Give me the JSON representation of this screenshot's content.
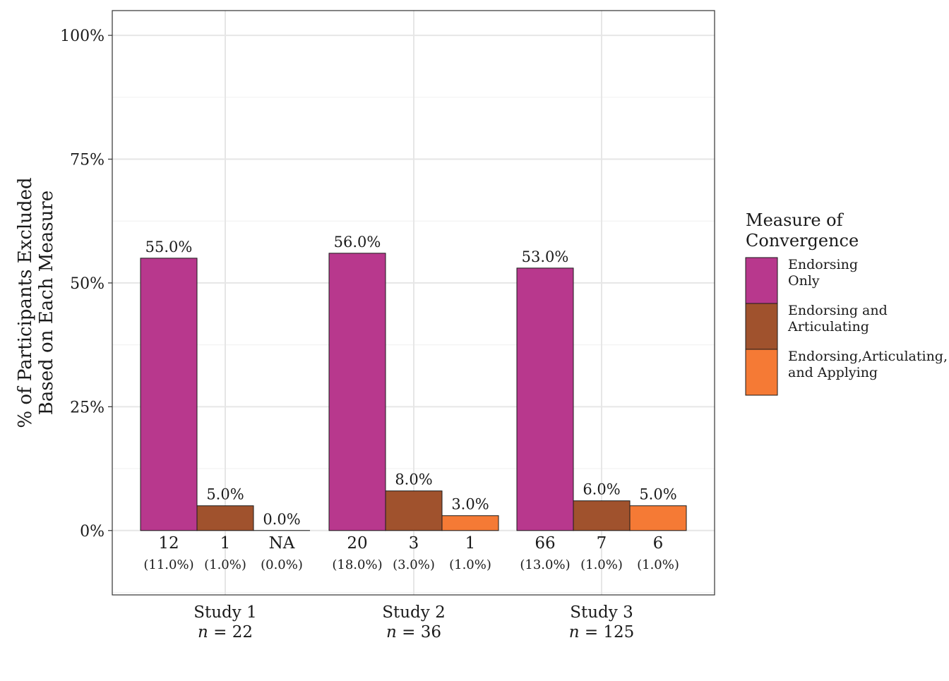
{
  "chart_data": {
    "type": "bar",
    "ylabel": [
      "% of Participants Excluded",
      "Based on Each Measure"
    ],
    "ylim": [
      -0.13,
      1.05
    ],
    "yticks": [
      0,
      0.25,
      0.5,
      0.75,
      1.0
    ],
    "ytick_labels": [
      "0%",
      "25%",
      "50%",
      "75%",
      "100%"
    ],
    "grid": true,
    "legend": {
      "title": [
        "Measure of",
        "Convergence"
      ],
      "placement": "right",
      "entries": [
        {
          "label": [
            "Endorsing",
            "Only"
          ],
          "color": "#B8388D"
        },
        {
          "label": [
            "Endorsing and",
            "Articulating"
          ],
          "color": "#A0522D"
        },
        {
          "label": [
            "Endorsing,Articulating,",
            "and Applying"
          ],
          "color": "#F57A35"
        }
      ]
    },
    "groups": [
      {
        "name": "Study 1",
        "n_prefix": "n",
        "n_text": " = 22",
        "bars": [
          {
            "value": 0.55,
            "label": "55.0%",
            "count": "12",
            "pct": "(11.0%)"
          },
          {
            "value": 0.05,
            "label": "5.0%",
            "count": "1",
            "pct": "(1.0%)"
          },
          {
            "value": 0.0,
            "label": "0.0%",
            "count": "NA",
            "pct": "(0.0%)"
          }
        ]
      },
      {
        "name": "Study 2",
        "n_prefix": "n",
        "n_text": " = 36",
        "bars": [
          {
            "value": 0.56,
            "label": "56.0%",
            "count": "20",
            "pct": "(18.0%)"
          },
          {
            "value": 0.08,
            "label": "8.0%",
            "count": "3",
            "pct": "(3.0%)"
          },
          {
            "value": 0.03,
            "label": "3.0%",
            "count": "1",
            "pct": "(1.0%)"
          }
        ]
      },
      {
        "name": "Study 3",
        "n_prefix": "n",
        "n_text": " = 125",
        "bars": [
          {
            "value": 0.53,
            "label": "53.0%",
            "count": "66",
            "pct": "(13.0%)"
          },
          {
            "value": 0.06,
            "label": "6.0%",
            "count": "7",
            "pct": "(1.0%)"
          },
          {
            "value": 0.05,
            "label": "5.0%",
            "count": "6",
            "pct": "(1.0%)"
          }
        ]
      }
    ]
  }
}
